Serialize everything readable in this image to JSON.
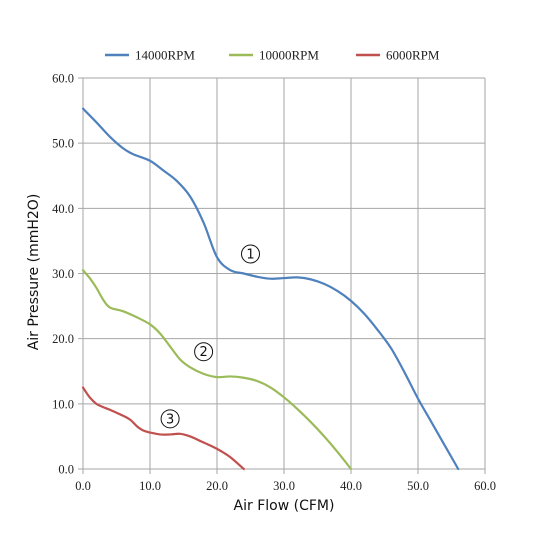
{
  "chart_data": {
    "type": "line",
    "title": "",
    "xlabel": "Air Flow (CFM)",
    "ylabel": "Air Pressure (mmH2O)",
    "xlim": [
      0,
      60
    ],
    "ylim": [
      0,
      60
    ],
    "x_ticks": [
      "0.0",
      "10.0",
      "20.0",
      "30.0",
      "40.0",
      "50.0",
      "60.0"
    ],
    "y_ticks": [
      "0.0",
      "10.0",
      "20.0",
      "30.0",
      "40.0",
      "50.0",
      "60.0"
    ],
    "grid": true,
    "legend_position": "top",
    "series": [
      {
        "name": "14000RPM",
        "color": "#4f81bd",
        "marker": "1",
        "points": [
          [
            0,
            55.3
          ],
          [
            2,
            53.2
          ],
          [
            4,
            51
          ],
          [
            6,
            49.2
          ],
          [
            7.5,
            48.3
          ],
          [
            10,
            47.3
          ],
          [
            12,
            45.8
          ],
          [
            14,
            44.2
          ],
          [
            16,
            41.8
          ],
          [
            18,
            37.8
          ],
          [
            20,
            32.5
          ],
          [
            22,
            30.5
          ],
          [
            24,
            30
          ],
          [
            26,
            29.5
          ],
          [
            28,
            29.2
          ],
          [
            30,
            29.3
          ],
          [
            32,
            29.4
          ],
          [
            34,
            29.1
          ],
          [
            36,
            28.4
          ],
          [
            38,
            27.3
          ],
          [
            40,
            25.8
          ],
          [
            42,
            23.8
          ],
          [
            44,
            21.3
          ],
          [
            46,
            18.5
          ],
          [
            48,
            14.8
          ],
          [
            50,
            10.8
          ],
          [
            52,
            7.2
          ],
          [
            54,
            3.6
          ],
          [
            56,
            0
          ]
        ]
      },
      {
        "name": "10000RPM",
        "color": "#9bbb59",
        "marker": "2",
        "points": [
          [
            0,
            30.5
          ],
          [
            1,
            29.3
          ],
          [
            2,
            27.8
          ],
          [
            3,
            26
          ],
          [
            4,
            24.8
          ],
          [
            6,
            24.2
          ],
          [
            8,
            23.3
          ],
          [
            10,
            22.2
          ],
          [
            11.5,
            20.8
          ],
          [
            13,
            18.8
          ],
          [
            14.5,
            16.8
          ],
          [
            16,
            15.6
          ],
          [
            18,
            14.6
          ],
          [
            20,
            14.1
          ],
          [
            22,
            14.2
          ],
          [
            24,
            14
          ],
          [
            26,
            13.5
          ],
          [
            28,
            12.5
          ],
          [
            30,
            11
          ],
          [
            32,
            9.2
          ],
          [
            34,
            7.2
          ],
          [
            36,
            5
          ],
          [
            38,
            2.6
          ],
          [
            40,
            0
          ]
        ]
      },
      {
        "name": "6000RPM",
        "color": "#c0504d",
        "marker": "3",
        "points": [
          [
            0,
            12.5
          ],
          [
            1,
            11
          ],
          [
            2,
            10
          ],
          [
            3,
            9.5
          ],
          [
            4,
            9.1
          ],
          [
            5.5,
            8.4
          ],
          [
            7,
            7.6
          ],
          [
            8,
            6.6
          ],
          [
            9,
            5.9
          ],
          [
            10,
            5.6
          ],
          [
            11.5,
            5.3
          ],
          [
            13,
            5.3
          ],
          [
            14.5,
            5.4
          ],
          [
            16,
            5
          ],
          [
            17.5,
            4.3
          ],
          [
            19,
            3.6
          ],
          [
            20.5,
            2.8
          ],
          [
            22,
            1.8
          ],
          [
            24,
            0
          ]
        ]
      }
    ],
    "annotations": [
      {
        "text": "1",
        "x": 25,
        "y": 33
      },
      {
        "text": "2",
        "x": 18,
        "y": 18
      },
      {
        "text": "3",
        "x": 13,
        "y": 7.7
      }
    ]
  }
}
